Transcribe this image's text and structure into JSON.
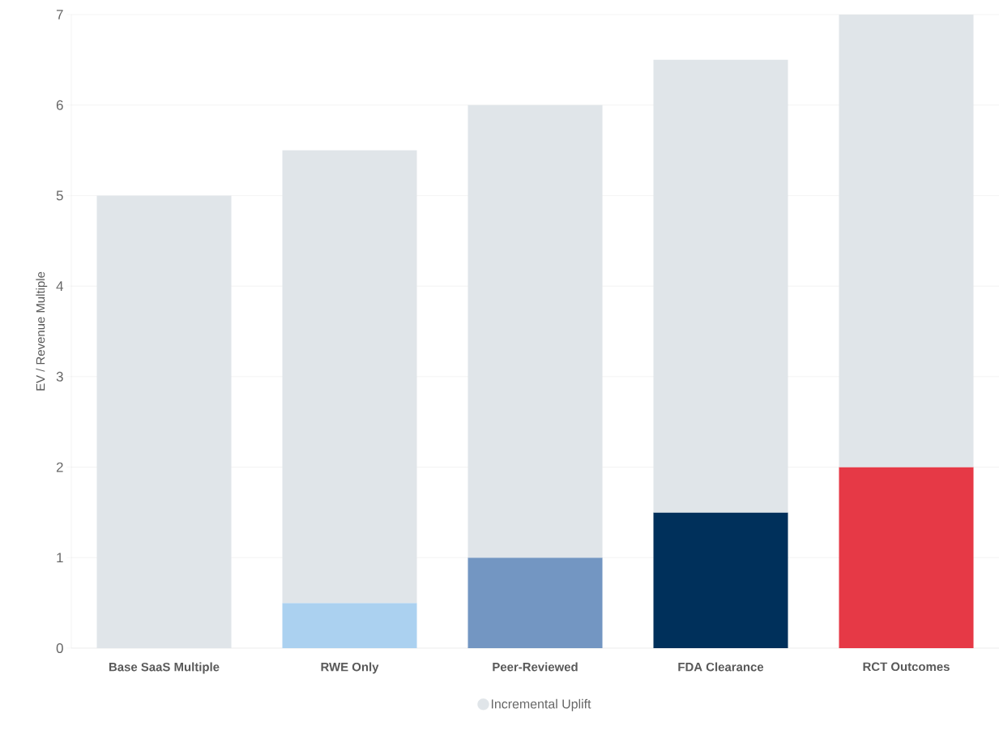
{
  "chart_data": {
    "type": "bar",
    "stacked": true,
    "ylabel": "EV / Revenue Multiple",
    "categories": [
      "Base SaaS Multiple",
      "RWE Only",
      "Peer-Reviewed",
      "FDA Clearance",
      "RCT Outcomes"
    ],
    "series": [
      {
        "colors": [
          "#e0e5e9",
          "#abd1f0",
          "#7396c2",
          "#00305b",
          "#e63946"
        ],
        "values": [
          0,
          0.5,
          1,
          1.5,
          2
        ]
      },
      {
        "name": "Incremental Uplift",
        "color": "#e0e5e9",
        "values": [
          5,
          5,
          5,
          5,
          5
        ]
      }
    ],
    "ylim": [
      0,
      7
    ],
    "yticks": [
      0,
      1,
      2,
      3,
      4,
      5,
      6,
      7
    ],
    "grid": "y",
    "legend": "bottom"
  }
}
